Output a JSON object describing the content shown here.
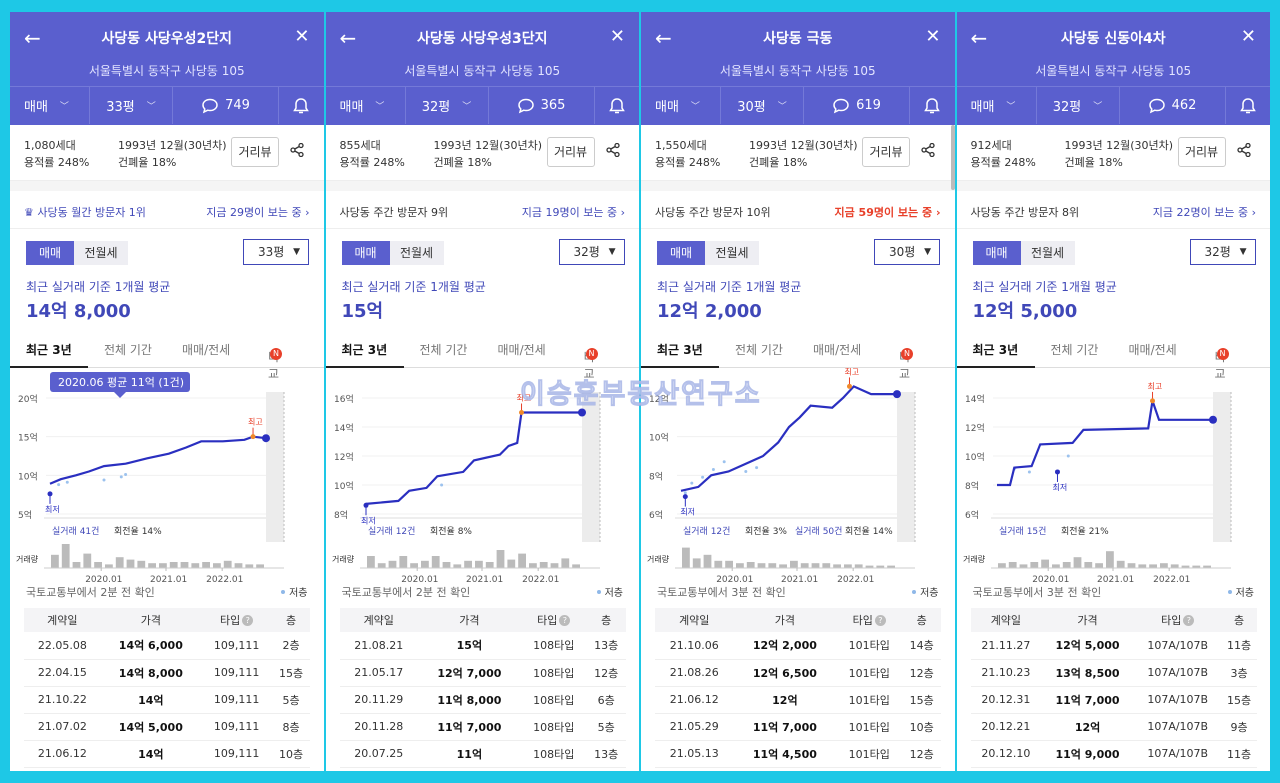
{
  "watermark": "이승훈부동산연구소",
  "common": {
    "trade_type": "매매",
    "trade_tab": "매매",
    "rent_tab": "전월세",
    "dist_view": "거리뷰",
    "avg_label": "최근 실거래 기준 1개월 평균",
    "tabs": [
      "최근 3년",
      "전체 기간",
      "매매/전세",
      "비교"
    ],
    "new_badge": "N",
    "volume_label": "거래량",
    "legend": "저층",
    "table_headers": [
      "계약일",
      "가격",
      "타입",
      "층"
    ],
    "help": "?",
    "x_ticks": [
      "2020.01",
      "2021.01",
      "2022.01"
    ],
    "low_tag": "최저",
    "high_tag": "최고",
    "colors": {
      "header": "#5a5fce",
      "accent": "#4048b8",
      "line": "#2a2fc0",
      "alert": "#e8402a"
    }
  },
  "panels": [
    {
      "title": "사당동 사당우성2단지",
      "address": "서울특별시 동작구 사당동 105",
      "size": "33평",
      "comments": "749",
      "households": "1,080세대",
      "far": "용적률 248%",
      "built": "1993년 12월(30년차)",
      "bcr": "건폐율 18%",
      "rank_left": "사당동 월간 방문자 1위",
      "rank_right": "지금 29명이 보는 중",
      "crown": true,
      "viewers_hot": false,
      "avg_price": "14억 8,000",
      "trades": "실거래 41건",
      "turnover": "회전율 14%",
      "trades2": "",
      "turnover2": "",
      "tooltip": "2020.06 평균 11억 (1건)",
      "source": "국토교통부에서 2분 전 확인",
      "chart_data": {
        "type": "line",
        "title": "",
        "xlabel": "",
        "ylabel": "",
        "ylim": [
          5,
          20
        ],
        "y_ticks": [
          "20억",
          "15억",
          "10억",
          "5억"
        ],
        "points": [
          [
            0,
            8.9
          ],
          [
            0.05,
            9.5
          ],
          [
            0.12,
            10.0
          ],
          [
            0.18,
            10.5
          ],
          [
            0.25,
            11.2
          ],
          [
            0.35,
            11.5
          ],
          [
            0.45,
            12.2
          ],
          [
            0.55,
            12.8
          ],
          [
            0.63,
            13.6
          ],
          [
            0.7,
            14.4
          ],
          [
            0.8,
            14.4
          ],
          [
            0.9,
            14.6
          ],
          [
            0.94,
            15.0
          ],
          [
            1,
            14.8
          ]
        ],
        "low_point": [
          0,
          7.6
        ],
        "high_point": [
          0.94,
          15.0
        ],
        "end_value": 14.8,
        "scatter": [
          [
            0.04,
            8.8
          ],
          [
            0.08,
            9.1
          ],
          [
            0.25,
            9.4
          ],
          [
            0.33,
            9.8
          ],
          [
            0.35,
            10.1
          ]
        ],
        "volume": [
          0.55,
          1.0,
          0.25,
          0.6,
          0.25,
          0.15,
          0.45,
          0.35,
          0.3,
          0.2,
          0.2,
          0.25,
          0.25,
          0.2,
          0.25,
          0.2,
          0.3,
          0.2,
          0.15,
          0.15
        ]
      },
      "rows": [
        [
          "22.05.08",
          "14억 6,000",
          "109,111",
          "2층"
        ],
        [
          "22.04.15",
          "14억 8,000",
          "109,111",
          "15층"
        ],
        [
          "21.10.22",
          "14억",
          "109,111",
          "5층"
        ],
        [
          "21.07.02",
          "14억 5,000",
          "109,111",
          "8층"
        ],
        [
          "21.06.12",
          "14억",
          "109,111",
          "10층"
        ]
      ]
    },
    {
      "title": "사당동 사당우성3단지",
      "address": "서울특별시 동작구 사당동 105",
      "size": "32평",
      "comments": "365",
      "households": "855세대",
      "far": "용적률 248%",
      "built": "1993년 12월(30년차)",
      "bcr": "건폐율 18%",
      "rank_left": "사당동 주간 방문자 9위",
      "rank_right": "지금 19명이 보는 중",
      "crown": false,
      "viewers_hot": false,
      "avg_price": "15억",
      "trades": "실거래 12건",
      "turnover": "회전율 8%",
      "trades2": "",
      "turnover2": "",
      "tooltip": "",
      "source": "국토교통부에서 2분 전 확인",
      "chart_data": {
        "type": "line",
        "title": "",
        "xlabel": "",
        "ylabel": "",
        "ylim": [
          8,
          16
        ],
        "y_ticks": [
          "16억",
          "14억",
          "12억",
          "10억",
          "8억"
        ],
        "points": [
          [
            0,
            8.7
          ],
          [
            0.15,
            8.9
          ],
          [
            0.2,
            9.6
          ],
          [
            0.28,
            9.8
          ],
          [
            0.33,
            10.6
          ],
          [
            0.45,
            10.9
          ],
          [
            0.5,
            11.7
          ],
          [
            0.62,
            12.1
          ],
          [
            0.66,
            12.7
          ],
          [
            0.7,
            12.9
          ],
          [
            0.72,
            15.0
          ],
          [
            1,
            15.0
          ]
        ],
        "low_point": [
          0,
          8.6
        ],
        "high_point": [
          0.72,
          15.0
        ],
        "end_value": 15.0,
        "scatter": [
          [
            0.35,
            10.0
          ]
        ],
        "volume": [
          0.5,
          0.2,
          0.3,
          0.5,
          0.2,
          0.3,
          0.5,
          0.25,
          0.15,
          0.3,
          0.3,
          0.25,
          0.75,
          0.35,
          0.6,
          0.2,
          0.25,
          0.2,
          0.4,
          0.15
        ]
      },
      "rows": [
        [
          "21.08.21",
          "15억",
          "108타입",
          "13층"
        ],
        [
          "21.05.17",
          "12억 7,000",
          "108타입",
          "12층"
        ],
        [
          "20.11.29",
          "11억 8,000",
          "108타입",
          "6층"
        ],
        [
          "20.11.28",
          "11억 7,000",
          "108타입",
          "5층"
        ],
        [
          "20.07.25",
          "11억",
          "108타입",
          "13층"
        ]
      ]
    },
    {
      "title": "사당동 극동",
      "address": "서울특별시 동작구 사당동 105",
      "size": "30평",
      "comments": "619",
      "households": "1,550세대",
      "far": "용적률 248%",
      "built": "1993년 12월(30년차)",
      "bcr": "건폐율 18%",
      "rank_left": "사당동 주간 방문자 10위",
      "rank_right": "지금 59명이 보는 중",
      "crown": false,
      "viewers_hot": true,
      "avg_price": "12억 2,000",
      "trades": "실거래 12건",
      "turnover": "회전율 3%",
      "trades2": "실거래 50건",
      "turnover2": "회전율 14%",
      "tooltip": "",
      "source": "국토교통부에서 3분 전 확인",
      "chart_data": {
        "type": "line",
        "title": "",
        "xlabel": "",
        "ylabel": "",
        "ylim": [
          6,
          12
        ],
        "y_ticks": [
          "12억",
          "10억",
          "8억",
          "6억"
        ],
        "points": [
          [
            0,
            7.2
          ],
          [
            0.08,
            7.4
          ],
          [
            0.14,
            8.0
          ],
          [
            0.22,
            8.2
          ],
          [
            0.3,
            8.6
          ],
          [
            0.38,
            9.0
          ],
          [
            0.45,
            9.7
          ],
          [
            0.5,
            10.5
          ],
          [
            0.55,
            11.0
          ],
          [
            0.6,
            11.6
          ],
          [
            0.7,
            11.5
          ],
          [
            0.75,
            12.0
          ],
          [
            0.8,
            12.6
          ],
          [
            0.88,
            12.2
          ],
          [
            1,
            12.2
          ]
        ],
        "low_point": [
          0.02,
          6.9
        ],
        "high_point": [
          0.78,
          12.6
        ],
        "end_value": 12.2,
        "scatter": [
          [
            0.02,
            7.1
          ],
          [
            0.05,
            7.6
          ],
          [
            0.1,
            7.9
          ],
          [
            0.15,
            8.3
          ],
          [
            0.2,
            8.7
          ],
          [
            0.3,
            8.2
          ],
          [
            0.35,
            8.4
          ]
        ],
        "volume": [
          0.85,
          0.4,
          0.55,
          0.3,
          0.3,
          0.2,
          0.25,
          0.2,
          0.2,
          0.15,
          0.3,
          0.2,
          0.2,
          0.2,
          0.15,
          0.15,
          0.15,
          0.1,
          0.1,
          0.1
        ]
      },
      "rows": [
        [
          "21.10.06",
          "12억 2,000",
          "101타입",
          "14층"
        ],
        [
          "21.08.26",
          "12억 6,500",
          "101타입",
          "12층"
        ],
        [
          "21.06.12",
          "12억",
          "101타입",
          "15층"
        ],
        [
          "21.05.29",
          "11억 7,000",
          "101타입",
          "10층"
        ],
        [
          "21.05.13",
          "11억 4,500",
          "101타입",
          "12층"
        ]
      ]
    },
    {
      "title": "사당동 신동아4차",
      "address": "서울특별시 동작구 사당동 105",
      "size": "32평",
      "comments": "462",
      "households": "912세대",
      "far": "용적률 248%",
      "built": "1993년 12월(30년차)",
      "bcr": "건폐율 18%",
      "rank_left": "사당동 주간 방문자 8위",
      "rank_right": "지금 22명이 보는 중",
      "crown": false,
      "viewers_hot": false,
      "avg_price": "12억 5,000",
      "trades": "실거래 15건",
      "turnover": "회전율 21%",
      "trades2": "",
      "turnover2": "",
      "tooltip": "",
      "source": "국토교통부에서 3분 전 확인",
      "chart_data": {
        "type": "line",
        "title": "",
        "xlabel": "",
        "ylabel": "",
        "ylim": [
          6,
          14
        ],
        "y_ticks": [
          "14억",
          "12억",
          "10억",
          "8억",
          "6억"
        ],
        "points": [
          [
            0,
            8.0
          ],
          [
            0.06,
            8.0
          ],
          [
            0.08,
            9.2
          ],
          [
            0.16,
            9.3
          ],
          [
            0.2,
            10.8
          ],
          [
            0.35,
            10.9
          ],
          [
            0.4,
            11.8
          ],
          [
            0.7,
            11.9
          ],
          [
            0.72,
            13.8
          ],
          [
            0.75,
            12.5
          ],
          [
            1,
            12.5
          ]
        ],
        "low_point": [
          0.28,
          8.9
        ],
        "high_point": [
          0.72,
          13.8
        ],
        "end_value": 12.5,
        "scatter": [
          [
            0.08,
            9.1
          ],
          [
            0.15,
            8.9
          ],
          [
            0.33,
            10.0
          ]
        ],
        "volume": [
          0.2,
          0.25,
          0.15,
          0.25,
          0.35,
          0.15,
          0.25,
          0.45,
          0.25,
          0.2,
          0.7,
          0.3,
          0.2,
          0.15,
          0.15,
          0.2,
          0.15,
          0.1,
          0.1,
          0.1
        ]
      },
      "rows": [
        [
          "21.11.27",
          "12억 5,000",
          "107A/107B",
          "11층"
        ],
        [
          "21.10.23",
          "13억 8,500",
          "107A/107B",
          "3층"
        ],
        [
          "20.12.31",
          "11억 7,000",
          "107A/107B",
          "15층"
        ],
        [
          "20.12.21",
          "12억",
          "107A/107B",
          "9층"
        ],
        [
          "20.12.10",
          "11억 9,000",
          "107A/107B",
          "11층"
        ]
      ]
    }
  ]
}
